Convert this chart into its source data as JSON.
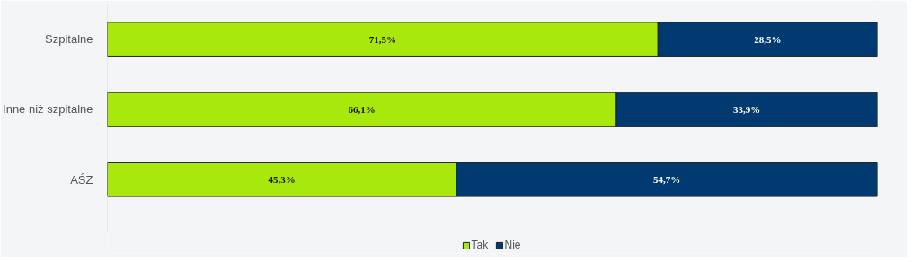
{
  "chart_data": {
    "type": "bar",
    "orientation": "horizontal",
    "stacked": true,
    "categories": [
      "Szpitalne",
      "Inne niż szpitalne",
      "AŚZ"
    ],
    "series": [
      {
        "name": "Tak",
        "color": "#a8e80c",
        "values": [
          71.5,
          66.1,
          45.3
        ],
        "value_labels": [
          "71,5%",
          "66,1%",
          "45,3%"
        ]
      },
      {
        "name": "Nie",
        "color": "#003a70",
        "values": [
          28.5,
          33.9,
          54.7
        ],
        "value_labels": [
          "28,5%",
          "33,9%",
          "54,7%"
        ]
      }
    ],
    "legend": "bottom",
    "grid": false
  }
}
